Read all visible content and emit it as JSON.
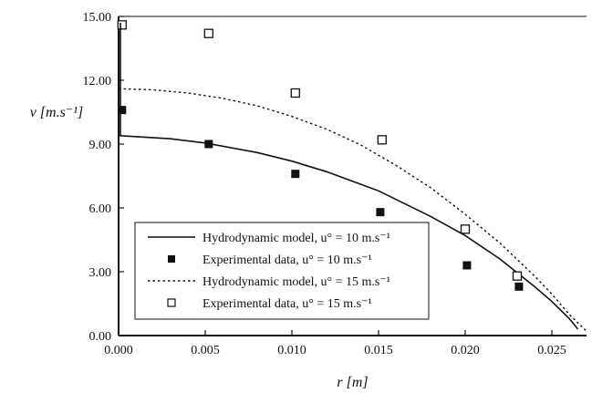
{
  "chart_data": {
    "type": "scatter",
    "xlabel": "r [m]",
    "ylabel": "v [m.s⁻¹]",
    "xlim": [
      0,
      0.027
    ],
    "ylim": [
      0,
      15
    ],
    "x_ticks": [
      "0.000",
      "0.005",
      "0.010",
      "0.015",
      "0.020",
      "0.025"
    ],
    "y_ticks": [
      "0.00",
      "3.00",
      "6.00",
      "9.00",
      "12.00",
      "15.00"
    ],
    "grid": false,
    "legend_position": "bottom-left",
    "series": [
      {
        "name": "Hydrodynamic model, u° = 10 m.s⁻¹",
        "kind": "line",
        "style": "solid",
        "x": [
          0,
          0.003,
          0.005,
          0.008,
          0.01,
          0.012,
          0.015,
          0.018,
          0.02,
          0.022,
          0.024,
          0.025,
          0.026,
          0.0265
        ],
        "y": [
          9.4,
          9.25,
          9.05,
          8.6,
          8.2,
          7.7,
          6.8,
          5.6,
          4.7,
          3.6,
          2.3,
          1.6,
          0.8,
          0.3
        ]
      },
      {
        "name": "Experimental data, u° = 10 m.s⁻¹",
        "kind": "scatter",
        "marker": "filled-square",
        "x": [
          0.0002,
          0.0052,
          0.0102,
          0.0151,
          0.0201,
          0.0231
        ],
        "y": [
          10.6,
          9.0,
          7.6,
          5.8,
          3.3,
          2.3
        ]
      },
      {
        "name": "Hydrodynamic model, u° = 15 m.s⁻¹",
        "kind": "line",
        "style": "dotted",
        "x": [
          0,
          0.002,
          0.004,
          0.006,
          0.008,
          0.01,
          0.012,
          0.014,
          0.016,
          0.018,
          0.02,
          0.022,
          0.024,
          0.025,
          0.026,
          0.027
        ],
        "y": [
          11.6,
          11.55,
          11.4,
          11.15,
          10.8,
          10.3,
          9.7,
          8.95,
          8.0,
          6.95,
          5.7,
          4.35,
          2.8,
          1.95,
          1.0,
          0.2
        ]
      },
      {
        "name": "Experimental data, u° = 15 m.s⁻¹",
        "kind": "scatter",
        "marker": "open-square",
        "x": [
          0.0002,
          0.0052,
          0.0102,
          0.0152,
          0.02,
          0.023
        ],
        "y": [
          14.6,
          14.2,
          11.4,
          9.2,
          5.0,
          2.8
        ]
      }
    ]
  }
}
